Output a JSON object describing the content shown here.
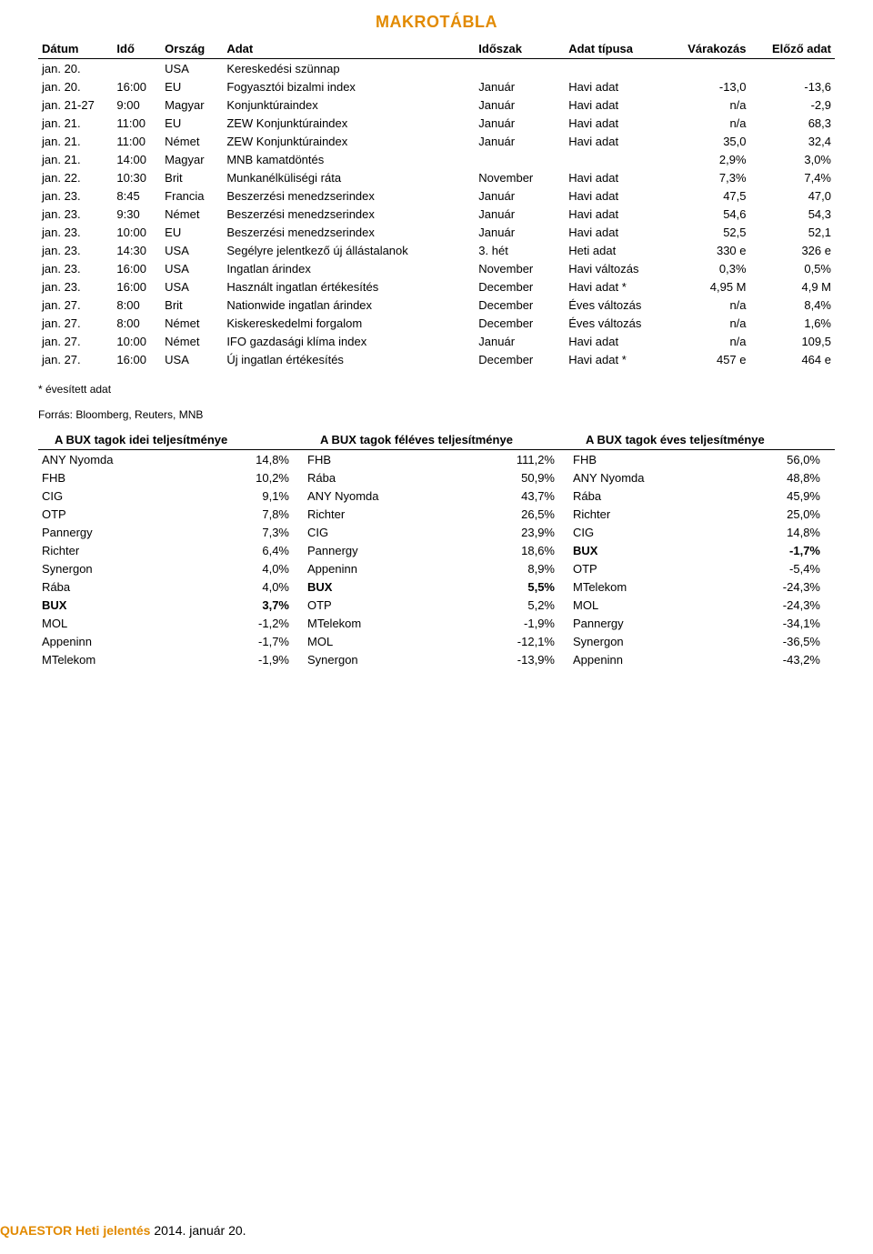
{
  "title": "MAKROTÁBLA",
  "macro": {
    "headers": [
      "Dátum",
      "Idő",
      "Ország",
      "Adat",
      "Időszak",
      "Adat típusa",
      "Várakozás",
      "Előző adat"
    ],
    "rows": [
      {
        "date": "jan. 20.",
        "time": "",
        "country": "USA",
        "name": "Kereskedési szünnap",
        "period": "",
        "type": "",
        "exp": "",
        "prev": ""
      },
      {
        "date": "jan. 20.",
        "time": "16:00",
        "country": "EU",
        "name": "Fogyasztói bizalmi index",
        "period": "Január",
        "type": "Havi adat",
        "exp": "-13,0",
        "prev": "-13,6"
      },
      {
        "date": "jan. 21-27",
        "time": "9:00",
        "country": "Magyar",
        "name": "Konjunktúraindex",
        "period": "Január",
        "type": "Havi adat",
        "exp": "n/a",
        "prev": "-2,9"
      },
      {
        "date": "jan. 21.",
        "time": "11:00",
        "country": "EU",
        "name": "ZEW Konjunktúraindex",
        "period": "Január",
        "type": "Havi adat",
        "exp": "n/a",
        "prev": "68,3"
      },
      {
        "date": "jan. 21.",
        "time": "11:00",
        "country": "Német",
        "name": "ZEW Konjunktúraindex",
        "period": "Január",
        "type": "Havi adat",
        "exp": "35,0",
        "prev": "32,4"
      },
      {
        "date": "jan. 21.",
        "time": "14:00",
        "country": "Magyar",
        "name": "MNB kamatdöntés",
        "period": "",
        "type": "",
        "exp": "2,9%",
        "prev": "3,0%"
      },
      {
        "date": "jan. 22.",
        "time": "10:30",
        "country": "Brit",
        "name": "Munkanélküliségi ráta",
        "period": "November",
        "type": "Havi adat",
        "exp": "7,3%",
        "prev": "7,4%"
      },
      {
        "date": "jan. 23.",
        "time": "8:45",
        "country": "Francia",
        "name": "Beszerzési menedzserindex",
        "period": "Január",
        "type": "Havi adat",
        "exp": "47,5",
        "prev": "47,0"
      },
      {
        "date": "jan. 23.",
        "time": "9:30",
        "country": "Német",
        "name": "Beszerzési menedzserindex",
        "period": "Január",
        "type": "Havi adat",
        "exp": "54,6",
        "prev": "54,3"
      },
      {
        "date": "jan. 23.",
        "time": "10:00",
        "country": "EU",
        "name": "Beszerzési menedzserindex",
        "period": "Január",
        "type": "Havi adat",
        "exp": "52,5",
        "prev": "52,1"
      },
      {
        "date": "jan. 23.",
        "time": "14:30",
        "country": "USA",
        "name": "Segélyre jelentkező új állástalanok",
        "period": "3. hét",
        "type": "Heti adat",
        "exp": "330 e",
        "prev": "326 e"
      },
      {
        "date": "jan. 23.",
        "time": "16:00",
        "country": "USA",
        "name": "Ingatlan árindex",
        "period": "November",
        "type": "Havi változás",
        "exp": "0,3%",
        "prev": "0,5%"
      },
      {
        "date": "jan. 23.",
        "time": "16:00",
        "country": "USA",
        "name": "Használt ingatlan értékesítés",
        "period": "December",
        "type": "Havi adat *",
        "exp": "4,95 M",
        "prev": "4,9 M"
      },
      {
        "date": "jan. 27.",
        "time": "8:00",
        "country": "Brit",
        "name": "Nationwide ingatlan árindex",
        "period": "December",
        "type": "Éves változás",
        "exp": "n/a",
        "prev": "8,4%"
      },
      {
        "date": "jan. 27.",
        "time": "8:00",
        "country": "Német",
        "name": "Kiskereskedelmi forgalom",
        "period": "December",
        "type": "Éves változás",
        "exp": "n/a",
        "prev": "1,6%"
      },
      {
        "date": "jan. 27.",
        "time": "10:00",
        "country": "Német",
        "name": "IFO gazdasági klíma index",
        "period": "Január",
        "type": "Havi adat",
        "exp": "n/a",
        "prev": "109,5"
      },
      {
        "date": "jan. 27.",
        "time": "16:00",
        "country": "USA",
        "name": "Új ingatlan értékesítés",
        "period": "December",
        "type": "Havi adat *",
        "exp": "457 e",
        "prev": "464 e"
      }
    ]
  },
  "footnote": "* évesített adat",
  "source": "Forrás: Bloomberg, Reuters, MNB",
  "perf": {
    "headers": [
      "A BUX tagok idei teljesítménye",
      "A BUX tagok féléves teljesítménye",
      "A BUX tagok éves teljesítménye"
    ],
    "cols": [
      [
        {
          "name": "ANY Nyomda",
          "pct": "14,8%",
          "bold": false
        },
        {
          "name": "FHB",
          "pct": "10,2%",
          "bold": false
        },
        {
          "name": "CIG",
          "pct": "9,1%",
          "bold": false
        },
        {
          "name": "OTP",
          "pct": "7,8%",
          "bold": false
        },
        {
          "name": "Pannergy",
          "pct": "7,3%",
          "bold": false
        },
        {
          "name": "Richter",
          "pct": "6,4%",
          "bold": false
        },
        {
          "name": "Synergon",
          "pct": "4,0%",
          "bold": false
        },
        {
          "name": "Rába",
          "pct": "4,0%",
          "bold": false
        },
        {
          "name": "BUX",
          "pct": "3,7%",
          "bold": true
        },
        {
          "name": "MOL",
          "pct": "-1,2%",
          "bold": false
        },
        {
          "name": "Appeninn",
          "pct": "-1,7%",
          "bold": false
        },
        {
          "name": "MTelekom",
          "pct": "-1,9%",
          "bold": false
        }
      ],
      [
        {
          "name": "FHB",
          "pct": "111,2%",
          "bold": false
        },
        {
          "name": "Rába",
          "pct": "50,9%",
          "bold": false
        },
        {
          "name": "ANY Nyomda",
          "pct": "43,7%",
          "bold": false
        },
        {
          "name": "Richter",
          "pct": "26,5%",
          "bold": false
        },
        {
          "name": "CIG",
          "pct": "23,9%",
          "bold": false
        },
        {
          "name": "Pannergy",
          "pct": "18,6%",
          "bold": false
        },
        {
          "name": "Appeninn",
          "pct": "8,9%",
          "bold": false
        },
        {
          "name": "BUX",
          "pct": "5,5%",
          "bold": true
        },
        {
          "name": "OTP",
          "pct": "5,2%",
          "bold": false
        },
        {
          "name": "MTelekom",
          "pct": "-1,9%",
          "bold": false
        },
        {
          "name": "MOL",
          "pct": "-12,1%",
          "bold": false
        },
        {
          "name": "Synergon",
          "pct": "-13,9%",
          "bold": false
        }
      ],
      [
        {
          "name": "FHB",
          "pct": "56,0%",
          "bold": false
        },
        {
          "name": "ANY Nyomda",
          "pct": "48,8%",
          "bold": false
        },
        {
          "name": "Rába",
          "pct": "45,9%",
          "bold": false
        },
        {
          "name": "Richter",
          "pct": "25,0%",
          "bold": false
        },
        {
          "name": "CIG",
          "pct": "14,8%",
          "bold": false
        },
        {
          "name": "BUX",
          "pct": "-1,7%",
          "bold": true
        },
        {
          "name": "OTP",
          "pct": "-5,4%",
          "bold": false
        },
        {
          "name": "MTelekom",
          "pct": "-24,3%",
          "bold": false
        },
        {
          "name": "MOL",
          "pct": "-24,3%",
          "bold": false
        },
        {
          "name": "Pannergy",
          "pct": "-34,1%",
          "bold": false
        },
        {
          "name": "Synergon",
          "pct": "-36,5%",
          "bold": false
        },
        {
          "name": "Appeninn",
          "pct": "-43,2%",
          "bold": false
        }
      ]
    ]
  },
  "footer": {
    "brand": "QUAESTOR Heti jelentés",
    "rest": " 2014. január 20."
  }
}
